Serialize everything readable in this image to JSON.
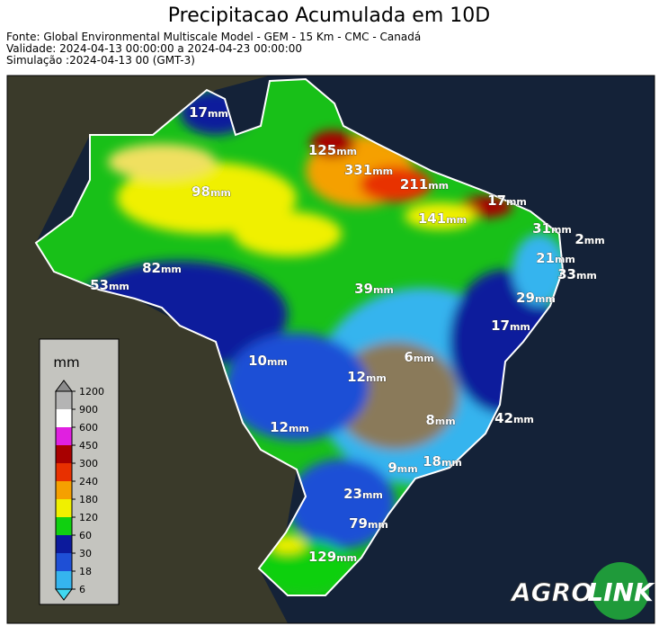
{
  "header": {
    "title": "Precipitacao Acumulada em 10D",
    "lines": [
      "Fonte: Global Environmental Multiscale Model - GEM - 15 Km - CMC - Canadá",
      "Validade: 2024-04-13 00:00:00 a 2024-04-23 00:00:00",
      "Simulação :2024-04-13 00 (GMT-3)"
    ]
  },
  "map": {
    "unit": "mm",
    "labels": [
      17,
      125,
      331,
      211,
      17,
      98,
      141,
      31,
      2,
      21,
      82,
      33,
      53,
      39,
      29,
      17,
      6,
      10,
      12,
      8,
      42,
      12,
      9,
      18,
      23,
      79,
      129
    ]
  },
  "legend": {
    "title": "mm",
    "ticks": [
      6,
      18,
      30,
      60,
      120,
      180,
      240,
      300,
      450,
      600,
      900,
      1200
    ],
    "colors": [
      "#35b4ee",
      "#1e4fd6",
      "#0c1a9c",
      "#10d010",
      "#f0f000",
      "#f5a000",
      "#e83000",
      "#a80000",
      "#e020e0",
      "#ffffff",
      "#b4b4b4"
    ],
    "under_color": "#40d8f0",
    "over_color": "#8c8c8c"
  },
  "logo": {
    "left": "AGRO",
    "right": "LINK"
  }
}
